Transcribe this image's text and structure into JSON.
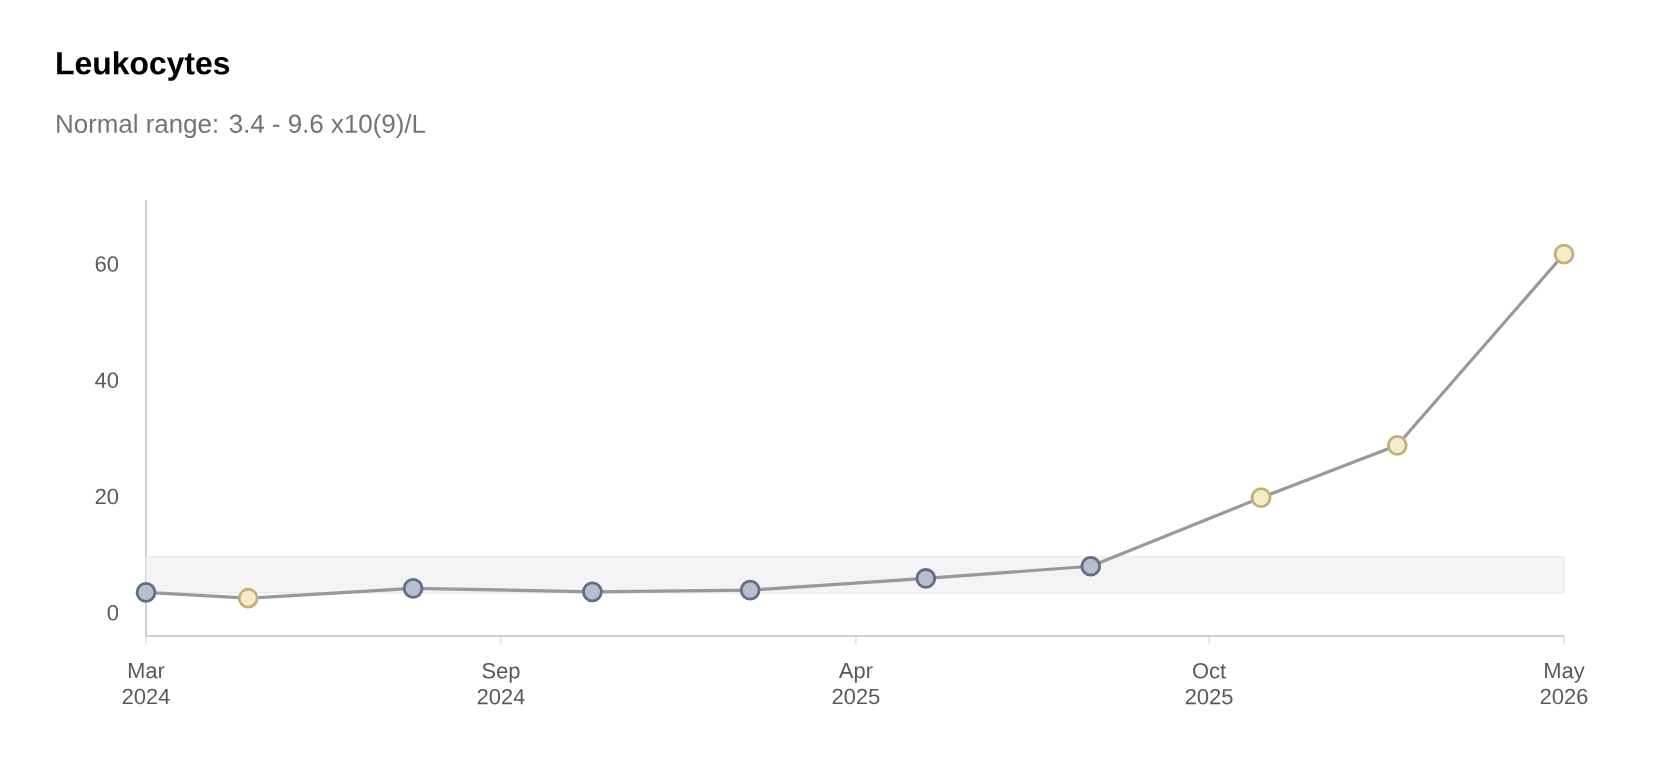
{
  "chart_data": {
    "type": "line",
    "title": "Leukocytes",
    "subtitle": "Normal range: 3.4 - 9.6 x10(9)/L",
    "x": [
      "2024-03-01",
      "2024-04-27",
      "2024-07-28",
      "2024-11-05",
      "2025-02-01",
      "2025-05-10",
      "2025-08-10",
      "2025-11-13",
      "2026-01-28",
      "2026-05-01"
    ],
    "series": [
      {
        "color": "#999999",
        "values": [
          3.5,
          2.5,
          4.2,
          3.6,
          3.9,
          5.9,
          8.0,
          19.8,
          28.8,
          61.7
        ],
        "colors": [
          "#7a88a8",
          "#f0dc9c",
          "#7a88a8",
          "#7a88a8",
          "#7a88a8",
          "#7a88a8",
          "#7a88a8",
          "#f0dc9c",
          "#f0dc9c",
          "#f0dc9c"
        ]
      }
    ],
    "xlim": [
      "2024-03-01",
      "2026-05-01"
    ],
    "xticks": [
      {
        "value": "2024-03-01",
        "label": "Mar 2024"
      },
      {
        "value": "2024-09-15",
        "label": "Sep 2024"
      },
      {
        "value": "2025-04-01",
        "label": "Apr 2025"
      },
      {
        "value": "2025-10-15",
        "label": "Oct 2025"
      },
      {
        "value": "2026-05-01",
        "label": "May 2026"
      }
    ],
    "ylim": [
      -4,
      71
    ],
    "yticks": [
      0,
      20,
      40,
      60
    ],
    "bands": [
      {
        "axis": "y",
        "from": 3.4,
        "to": 9.6,
        "color": "#f4f4f4"
      }
    ],
    "marker": "circle",
    "line_style": "solid"
  }
}
